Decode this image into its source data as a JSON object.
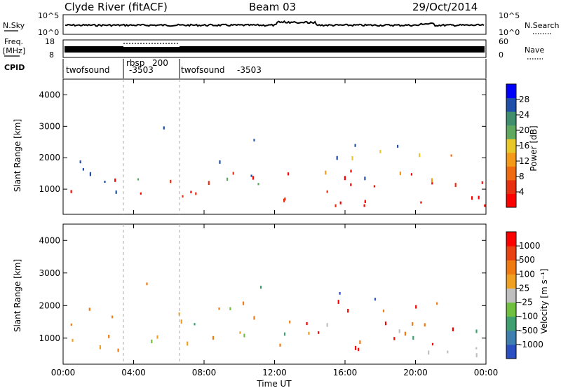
{
  "header": {
    "station": "Clyde River (fitACF)",
    "beam": "Beam 03",
    "date": "29/Oct/2014"
  },
  "noise_panel": {
    "left_label": "N.Sky",
    "left_ticks": [
      "10^5",
      "10^0"
    ],
    "right_ticks": [
      "10^5",
      "10^0"
    ],
    "right_label": "N.Search"
  },
  "freq_panel": {
    "left_label_1": "Freq.",
    "left_label_2": "[MHz]",
    "left_ticks": [
      "18",
      "8"
    ],
    "right_ticks": [
      "60",
      "0"
    ],
    "right_label": "Nave"
  },
  "cpid_panel": {
    "label": "CPID",
    "segments": [
      {
        "name": "twofsound",
        "id": "-3503"
      },
      {
        "name": "rbsp",
        "id": "200"
      },
      {
        "name": "twofsound",
        "id": "-3503"
      }
    ]
  },
  "colors": {
    "power_scale": [
      "#0000ff",
      "#1f4fa8",
      "#3f8f6f",
      "#5fa85f",
      "#e8c828",
      "#f39a18",
      "#f06a10",
      "#e83010",
      "#ff0000"
    ],
    "velocity_scale": [
      "#2a4fc0",
      "#3f7fb0",
      "#3f9f6f",
      "#70c040",
      "#bfbfbf",
      "#f0a020",
      "#f07a10",
      "#e84010",
      "#ff0000"
    ]
  },
  "chart_data": [
    {
      "type": "heatmap",
      "title": "",
      "ylabel": "Slant Range [km]",
      "ylim": [
        200,
        4500
      ],
      "y_ticks": [
        "4000",
        "3000",
        "2000",
        "1000"
      ],
      "x_ticks": [
        "00:00",
        "04:00",
        "08:00",
        "12:00",
        "16:00",
        "20:00",
        "00:00"
      ],
      "colorbar": {
        "label": "Power [dB]",
        "ticks": [
          "28",
          "24",
          "20",
          "16",
          "12",
          "8",
          "4"
        ]
      }
    },
    {
      "type": "heatmap",
      "title": "",
      "ylabel": "Slant Range [km]",
      "xlabel": "Time UT",
      "ylim": [
        200,
        4500
      ],
      "y_ticks": [
        "4000",
        "3000",
        "2000",
        "1000"
      ],
      "x_ticks": [
        "00:00",
        "04:00",
        "08:00",
        "12:00",
        "16:00",
        "20:00",
        "00:00"
      ],
      "colorbar": {
        "label": "Velocity [m s⁻¹]",
        "ticks": [
          "1000",
          "500",
          "100",
          "25",
          "-25",
          "-100",
          "-500",
          "-1000"
        ]
      }
    }
  ]
}
